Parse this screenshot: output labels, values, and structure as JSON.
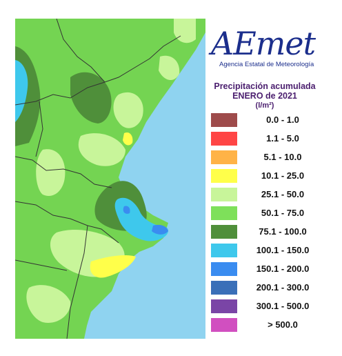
{
  "logo": {
    "wordmark": "AEmet",
    "agency": "Agencia Estatal de Meteorología"
  },
  "title": {
    "line1": "Precipitación acumulada",
    "line2": "ENERO de 2021",
    "unit": "(l/m²)"
  },
  "legend": [
    {
      "label": "0.0 - 1.0",
      "color": "#9e4b4b"
    },
    {
      "label": "1.1 - 5.0",
      "color": "#ff4545"
    },
    {
      "label": "5.1 - 10.0",
      "color": "#ffb347"
    },
    {
      "label": "10.1 - 25.0",
      "color": "#ffff4a"
    },
    {
      "label": "25.1 - 50.0",
      "color": "#c8f59a"
    },
    {
      "label": "50.1 - 75.0",
      "color": "#7ee05a"
    },
    {
      "label": "75.1 - 100.0",
      "color": "#4f8f3a"
    },
    {
      "label": "100.1 - 150.0",
      "color": "#3ec8ec"
    },
    {
      "label": "150.1 - 200.0",
      "color": "#3a8cf0"
    },
    {
      "label": "200.1 - 300.0",
      "color": "#3a6fb8"
    },
    {
      "label": "300.1 - 500.0",
      "color": "#7a45a6"
    },
    {
      "label": "> 500.0",
      "color": "#d14fc0"
    }
  ],
  "map_colors": {
    "sea": "#8fd3f0",
    "land_base": "#74d452",
    "border": "#333333"
  }
}
